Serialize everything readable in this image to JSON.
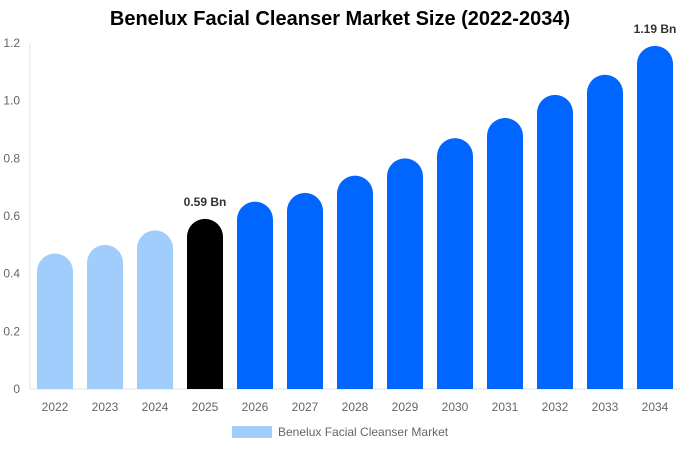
{
  "chart_data": {
    "type": "bar",
    "title": "Benelux Facial Cleanser Market Size (2022-2034)",
    "categories": [
      "2022",
      "2023",
      "2024",
      "2025",
      "2026",
      "2027",
      "2028",
      "2029",
      "2030",
      "2031",
      "2032",
      "2033",
      "2034"
    ],
    "series": [
      {
        "name": "Benelux Facial Cleanser Market",
        "values": [
          0.47,
          0.5,
          0.55,
          0.59,
          0.65,
          0.68,
          0.74,
          0.8,
          0.87,
          0.94,
          1.02,
          1.09,
          1.19
        ]
      }
    ],
    "bar_colors": [
      "#a0cdfc",
      "#a0cdfc",
      "#a0cdfc",
      "#000000",
      "#0066ff",
      "#0066ff",
      "#0066ff",
      "#0066ff",
      "#0066ff",
      "#0066ff",
      "#0066ff",
      "#0066ff",
      "#0066ff"
    ],
    "data_labels": [
      {
        "category": "2025",
        "text": "0.59 Bn"
      },
      {
        "category": "2034",
        "text": "1.19 Bn"
      }
    ],
    "yticks": [
      "0",
      "0.2",
      "0.4",
      "0.6",
      "0.8",
      "1.0",
      "1.2"
    ],
    "ylim": [
      0,
      1.2
    ],
    "xlabel": "",
    "ylabel": "",
    "grid": false,
    "legend": "bottom-center"
  }
}
